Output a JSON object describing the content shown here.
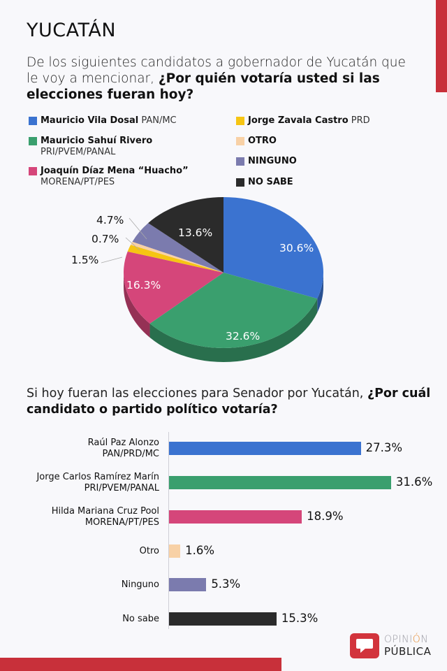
{
  "header": {
    "title": "YUCATÁN",
    "question_intro": "De los siguientes candidatos a gobernador de Yucatán que le voy a mencionar, ",
    "question_bold": "¿Por quién votaría usted si las elecciones fueran hoy?"
  },
  "legend": {
    "items": [
      {
        "name": "Mauricio Vila Dosal",
        "party": "PAN/MC",
        "color": "#3b73d0"
      },
      {
        "name": "Mauricio Sahuí Rivero",
        "party": "PRI/PVEM/PANAL",
        "color": "#3a9f6e"
      },
      {
        "name": "Joaquín Díaz Mena “Huacho”",
        "party": "MORENA/PT/PES",
        "color": "#d5467a"
      },
      {
        "name": "Jorge Zavala Castro",
        "party": "PRD",
        "color": "#f6c513"
      },
      {
        "name": "OTRO",
        "party": "",
        "color": "#f8d1a6"
      },
      {
        "name": "NINGUNO",
        "party": "",
        "color": "#7b7bae"
      },
      {
        "name": "NO SABE",
        "party": "",
        "color": "#2b2b2b"
      }
    ]
  },
  "section2": {
    "question_intro": "Si hoy fueran las elecciones para Senador por Yucatán, ",
    "question_bold": "¿Por cuál candidato o partido político votaría?"
  },
  "logo": {
    "line1_a": "OPINI",
    "line1_b": "Ó",
    "line1_c": "N",
    "line2": "PÚBLICA"
  },
  "chart_data": [
    {
      "type": "pie",
      "title": "¿Por quién votaría usted si las elecciones fueran hoy? (Gobernador de Yucatán)",
      "categories": [
        "Mauricio Vila Dosal PAN/MC",
        "Mauricio Sahuí Rivero PRI/PVEM/PANAL",
        "Joaquín Díaz Mena “Huacho” MORENA/PT/PES",
        "Jorge Zavala Castro PRD",
        "OTRO",
        "NINGUNO",
        "NO SABE"
      ],
      "values": [
        30.6,
        32.6,
        16.3,
        1.5,
        0.7,
        4.7,
        13.6
      ],
      "labels": [
        "30.6%",
        "32.6%",
        "16.3%",
        "1.5%",
        "0.7%",
        "4.7%",
        "13.6%"
      ],
      "colors": [
        "#3b73d0",
        "#3a9f6e",
        "#d5467a",
        "#f6c513",
        "#f8d1a6",
        "#7b7bae",
        "#2b2b2b"
      ],
      "style": "3d"
    },
    {
      "type": "bar",
      "orientation": "horizontal",
      "title": "¿Por cuál candidato o partido político votaría? (Senador por Yucatán)",
      "categories": [
        {
          "line1": "Raúl Paz Alonzo",
          "line2": "PAN/PRD/MC"
        },
        {
          "line1": "Jorge Carlos Ramírez Marín",
          "line2": "PRI/PVEM/PANAL"
        },
        {
          "line1": "Hilda Mariana Cruz Pool",
          "line2": "MORENA/PT/PES"
        },
        {
          "line1": "Otro",
          "line2": ""
        },
        {
          "line1": "Ninguno",
          "line2": ""
        },
        {
          "line1": "No sabe",
          "line2": ""
        }
      ],
      "values": [
        27.3,
        31.6,
        18.9,
        1.6,
        5.3,
        15.3
      ],
      "labels": [
        "27.3%",
        "31.6%",
        "18.9%",
        "1.6%",
        "5.3%",
        "15.3%"
      ],
      "colors": [
        "#3b73d0",
        "#3a9f6e",
        "#d5467a",
        "#f8d1a6",
        "#7b7bae",
        "#2b2b2b"
      ],
      "grid": false
    }
  ]
}
